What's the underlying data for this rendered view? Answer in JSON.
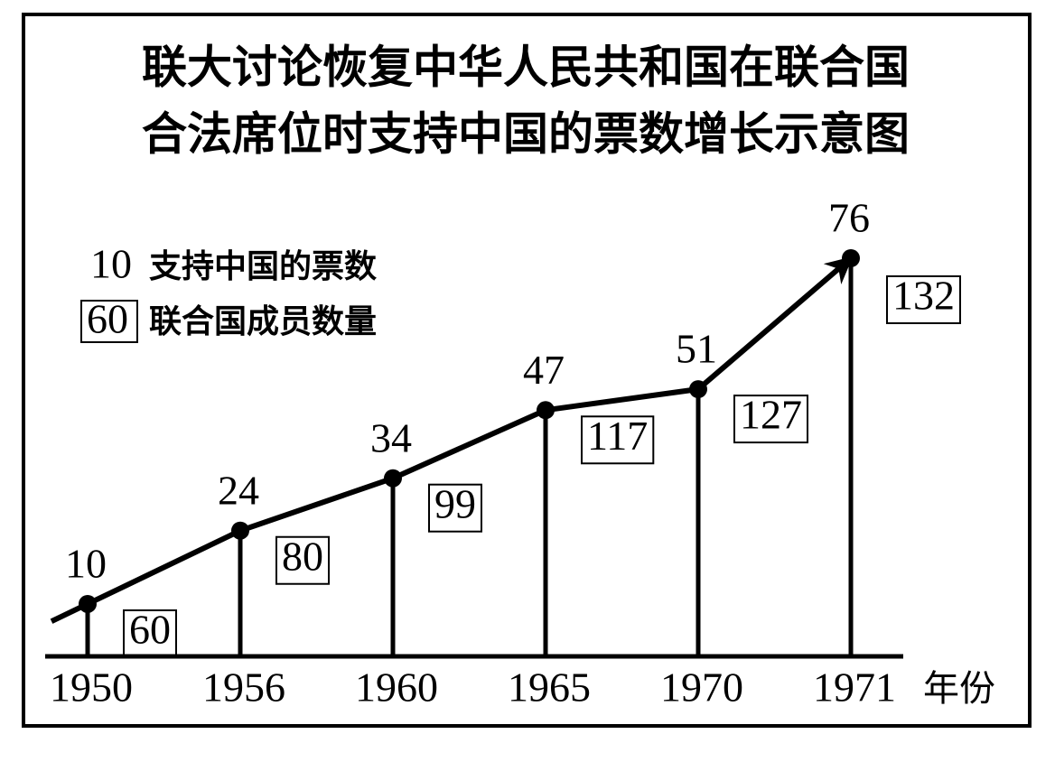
{
  "chart_data": {
    "type": "line",
    "title_lines": [
      "联大讨论恢复中华人民共和国在联合国",
      "合法席位时支持中国的票数增长示意图"
    ],
    "categories": [
      "1950",
      "1956",
      "1960",
      "1965",
      "1970",
      "1971"
    ],
    "x_label": "年份",
    "series": [
      {
        "name": "支持中国的票数",
        "color": "#000000",
        "values": [
          10,
          24,
          34,
          47,
          51,
          76
        ]
      },
      {
        "name": "联合国成员数量",
        "color": "#000000",
        "values": [
          60,
          80,
          99,
          117,
          127,
          132
        ]
      }
    ],
    "legend_samples": [
      "10",
      "60"
    ]
  }
}
